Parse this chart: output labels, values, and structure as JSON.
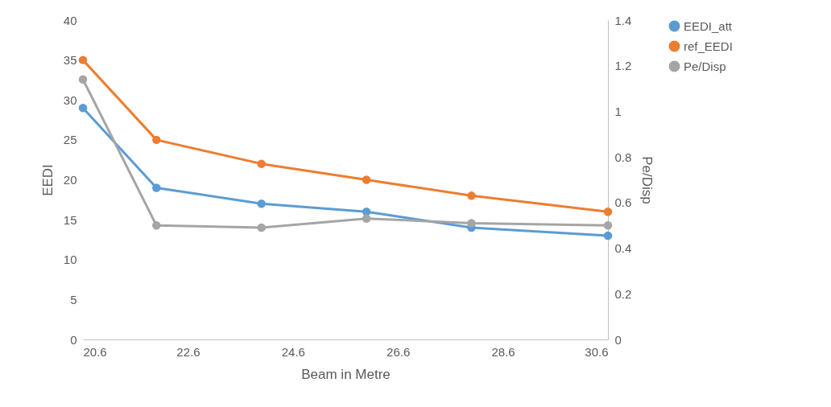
{
  "chart_data": {
    "type": "line",
    "xlabel": "Beam in Metre",
    "ylabel": "EEDI",
    "y2label": "Pe/Disp",
    "x": [
      20.6,
      22,
      24,
      26,
      28,
      30.6
    ],
    "series": [
      {
        "name": "EEDI_att",
        "color": "#5b9bd5",
        "values": [
          29,
          19,
          17,
          16,
          14,
          13
        ]
      },
      {
        "name": "ref_EEDI",
        "color": "#ed7d31",
        "values": [
          35,
          25,
          22,
          20,
          18,
          16
        ]
      },
      {
        "name": "Pe/Disp",
        "color": "#a5a5a5",
        "axis": "y2",
        "values": [
          1.14,
          0.5,
          0.49,
          0.53,
          0.51,
          0.5
        ]
      }
    ],
    "xlim": [
      20.6,
      30.6
    ],
    "xticks": [
      20.6,
      22.6,
      24.6,
      26.6,
      28.6,
      30.6
    ],
    "ylim": [
      0,
      40
    ],
    "yticks": [
      0,
      5,
      10,
      15,
      20,
      25,
      30,
      35,
      40
    ],
    "y2lim": [
      0,
      1.4
    ],
    "y2ticks": [
      0,
      0.2,
      0.4,
      0.6,
      0.8,
      1,
      1.2,
      1.4
    ],
    "grid": false,
    "legend": "top right",
    "marker": "circle",
    "line_style": "solid"
  }
}
